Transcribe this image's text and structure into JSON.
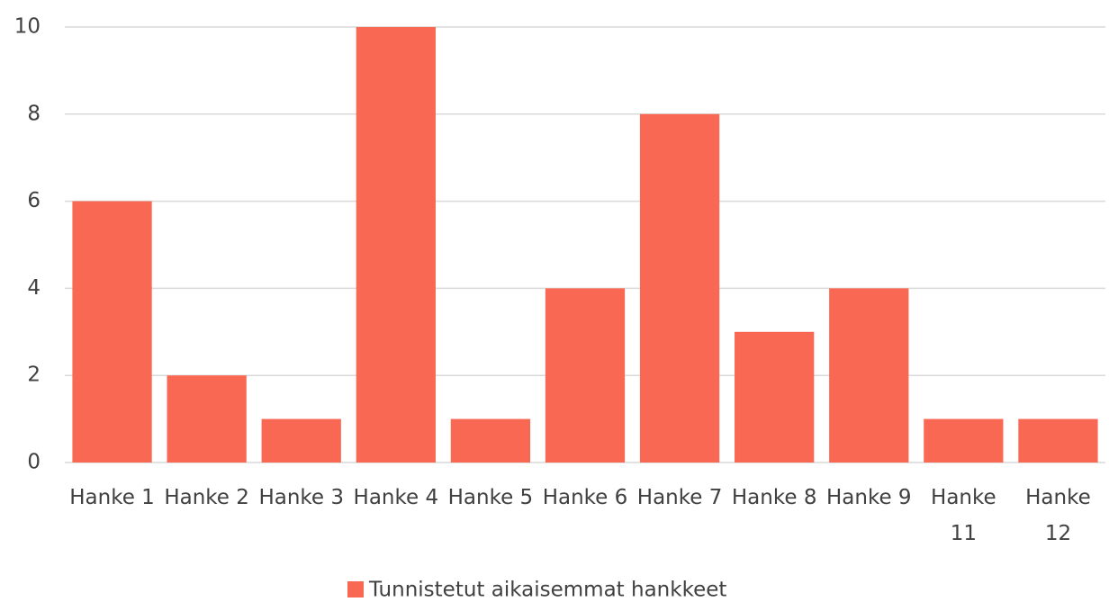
{
  "chart_data": {
    "type": "bar",
    "categories": [
      "Hanke 1",
      "Hanke 2",
      "Hanke 3",
      "Hanke 4",
      "Hanke 5",
      "Hanke 6",
      "Hanke 7",
      "Hanke 8",
      "Hanke 9",
      "Hanke 11",
      "Hanke 12"
    ],
    "series": [
      {
        "name": "Tunnistetut aikaisemmat hankkeet",
        "color": "#f96853",
        "values": [
          6,
          2,
          1,
          10,
          1,
          4,
          8,
          3,
          4,
          1,
          1
        ]
      }
    ],
    "ylim": [
      0,
      10
    ],
    "yticks": [
      0,
      2,
      4,
      6,
      8,
      10
    ],
    "grid": true,
    "legend": "bottom"
  }
}
